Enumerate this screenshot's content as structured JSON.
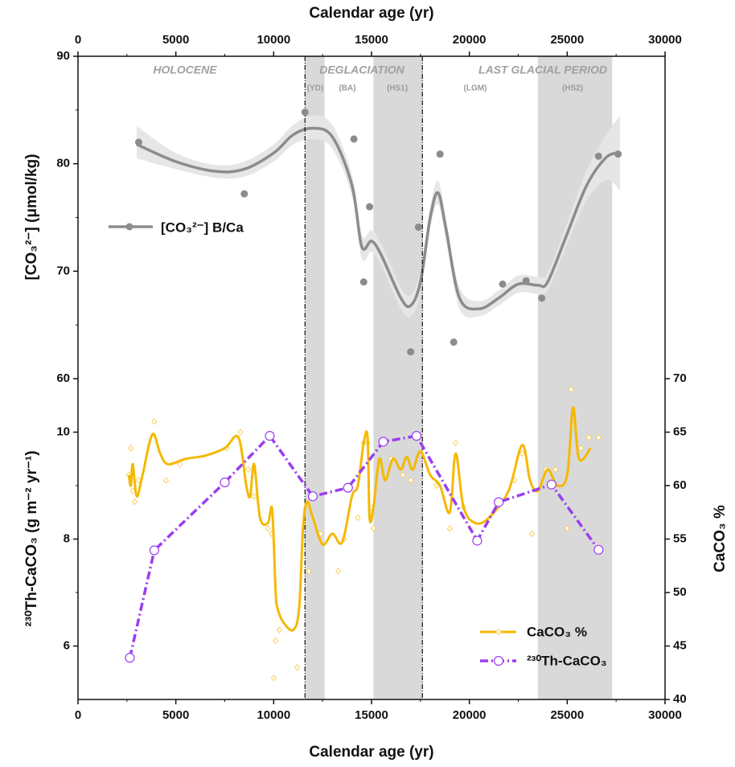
{
  "chart_data": [
    {
      "type": "line",
      "xlabel": "Calendar age (yr)",
      "xlim": [
        0,
        30000
      ],
      "xticks": [
        0,
        5000,
        10000,
        15000,
        20000,
        25000,
        30000
      ],
      "xminorticks": [
        2500,
        7500,
        12500,
        17500,
        22500,
        27500
      ],
      "ylabel": "[CO₃²⁻] (μmol/kg)",
      "ylim": [
        60,
        90
      ],
      "yticks": [
        60,
        70,
        80,
        90
      ],
      "yminorticks": [
        65,
        75,
        85
      ],
      "annotations": [
        "HOLOCENE",
        "DEGLACIATION",
        "LAST GLACIAL PERIOD",
        "(YD)",
        "(BA)",
        "(HS1)",
        "(LGM)",
        "(HS2)"
      ],
      "shaded_ranges": [
        [
          11600,
          12600
        ],
        [
          15100,
          17600
        ],
        [
          23500,
          27300
        ]
      ],
      "boundaries": [
        11600,
        17600
      ],
      "band_color": "#d9d9d9",
      "series": [
        {
          "name": "[CO₃²⁻] B/Ca",
          "color": "#8c8c8c",
          "ci_color": "#e6e6e6",
          "x": [
            3000,
            5000,
            7000,
            8500,
            10000,
            11000,
            12000,
            13000,
            14000,
            14500,
            15000,
            15500,
            16500,
            17000,
            17500,
            18000,
            18400,
            18800,
            19500,
            20500,
            21500,
            22500,
            23500,
            24000,
            25000,
            26000,
            27000,
            27700
          ],
          "values": [
            81.8,
            80.2,
            79.3,
            79.5,
            81,
            82.7,
            83.3,
            82.5,
            78,
            72.3,
            72.8,
            71.5,
            67.5,
            66.8,
            69,
            75,
            77.3,
            74,
            67.5,
            66.5,
            67.5,
            68.8,
            68.7,
            69,
            73.5,
            78,
            80.6,
            81
          ],
          "ci_lower": [
            80.5,
            79.5,
            78.7,
            78.8,
            80.2,
            81.8,
            82.3,
            81.4,
            77,
            71.2,
            71.8,
            70.5,
            66.5,
            65.8,
            68,
            74,
            76.2,
            73,
            66.5,
            65.8,
            66.8,
            68,
            67.9,
            68.2,
            72.5,
            76.6,
            78.5,
            77.5
          ],
          "ci_upper": [
            83.5,
            81,
            79.9,
            80.2,
            81.8,
            83.6,
            84.5,
            83.6,
            79,
            73.4,
            73.8,
            72.5,
            68.5,
            67.8,
            70,
            76,
            78.4,
            75,
            68.5,
            67.2,
            68.2,
            69.6,
            69.5,
            69.8,
            74.5,
            79.4,
            82.7,
            84.5
          ],
          "points_x": [
            3100,
            8500,
            11600,
            14100,
            14600,
            14900,
            17000,
            17400,
            18500,
            19200,
            21700,
            22900,
            23700,
            26600,
            27600
          ],
          "points": [
            82.0,
            77.2,
            84.8,
            82.3,
            69.0,
            76.0,
            62.5,
            74.1,
            80.9,
            63.4,
            68.8,
            69.1,
            67.5,
            80.7,
            80.9
          ]
        }
      ]
    },
    {
      "type": "line",
      "xlabel": "Calendar age (yr)",
      "xlim": [
        0,
        30000
      ],
      "xticks": [
        0,
        5000,
        10000,
        15000,
        20000,
        25000,
        30000
      ],
      "xminorticks": [
        2500,
        7500,
        12500,
        17500,
        22500,
        27500
      ],
      "ylabel": "²³⁰Th-CaCO₃ (g m⁻² yr⁻¹)",
      "ylim": [
        5,
        11
      ],
      "yticks": [
        6,
        8,
        10
      ],
      "yminorticks": [
        7,
        9
      ],
      "y2label": "CaCO₃ %",
      "y2lim": [
        40,
        70
      ],
      "y2ticks": [
        40,
        45,
        50,
        55,
        60,
        65,
        70
      ],
      "series": [
        {
          "name": "CaCO₃ %",
          "color": "#f5b800",
          "axis": "y2",
          "point_color": "#f7d060",
          "x": [
            2600,
            2700,
            2800,
            3000,
            3300,
            3800,
            4200,
            4600,
            5500,
            6500,
            7500,
            8200,
            8600,
            8800,
            9000,
            9300,
            9700,
            9900,
            10000,
            10100,
            10200,
            10500,
            11000,
            11300,
            11500,
            11700,
            12000,
            12500,
            13000,
            13500,
            14000,
            14300,
            14600,
            14800,
            14900,
            15100,
            15400,
            15700,
            16100,
            16500,
            16800,
            17100,
            17500,
            18000,
            18500,
            19000,
            19300,
            19700,
            20300,
            21000,
            22000,
            22700,
            23100,
            23500,
            24000,
            24500,
            25000,
            25300,
            25600,
            26200
          ],
          "values": [
            61,
            60,
            62,
            59,
            61,
            64.8,
            63,
            62,
            62.5,
            62.8,
            63.5,
            64.5,
            60,
            59,
            62,
            57,
            56.5,
            58,
            55,
            50,
            48.5,
            47.2,
            46.5,
            48.5,
            56,
            58.5,
            57,
            54.5,
            55.5,
            54.7,
            59,
            60,
            64,
            64.5,
            57,
            58,
            62.5,
            60.5,
            62.5,
            61.5,
            62.7,
            61.5,
            63.2,
            61,
            60,
            57.5,
            63,
            58,
            56.5,
            57,
            59.5,
            63.8,
            60.5,
            59.5,
            61.5,
            60,
            61,
            67.3,
            62.5,
            63.5
          ],
          "points_x": [
            2600,
            2700,
            2800,
            2900,
            3100,
            3900,
            4500,
            5200,
            7600,
            8300,
            8700,
            9000,
            9700,
            9900,
            10000,
            10100,
            10300,
            11200,
            11800,
            12400,
            13300,
            13600,
            14300,
            14600,
            14800,
            15000,
            15100,
            16000,
            16600,
            17000,
            18300,
            19000,
            19300,
            19700,
            22300,
            22700,
            23200,
            23900,
            24400,
            25000,
            25200,
            25700,
            26100,
            26600
          ],
          "points": [
            61,
            63.5,
            59.5,
            58.5,
            60.5,
            66,
            60.5,
            62,
            63.5,
            65,
            61.5,
            59,
            56,
            55.5,
            42,
            45.5,
            46.5,
            43,
            52,
            55.5,
            52,
            55,
            57,
            64,
            64,
            57.5,
            56,
            62.5,
            61,
            60.5,
            60,
            56,
            64,
            58,
            60.5,
            63,
            55.5,
            61.5,
            61.5,
            56,
            69,
            63.5,
            64.5,
            64.5
          ]
        },
        {
          "name": "²³⁰Th-CaCO₃",
          "color": "#9b3ef0",
          "axis": "y",
          "x": [
            2650,
            3900,
            7500,
            9800,
            12000,
            13800,
            15600,
            17300,
            20400,
            21500,
            24200,
            26600
          ],
          "values": [
            5.78,
            7.79,
            9.06,
            9.93,
            8.8,
            8.96,
            9.82,
            9.93,
            7.97,
            8.69,
            9.02,
            7.8
          ]
        }
      ]
    }
  ]
}
